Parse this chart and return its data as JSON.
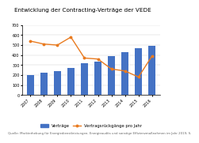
{
  "title": "Entwicklung der Contracting-Verträge der VEDE",
  "years": [
    "2007",
    "2008",
    "2009",
    "2010",
    "2011",
    "2012",
    "2013",
    "2014",
    "2015",
    "2016"
  ],
  "bar_values": [
    200,
    220,
    240,
    270,
    320,
    330,
    390,
    430,
    470,
    490
  ],
  "line_values": [
    540,
    510,
    500,
    580,
    370,
    360,
    260,
    240,
    180,
    390
  ],
  "bar_color": "#4472C4",
  "line_color": "#E97B20",
  "bar_label": "Verträge",
  "line_label": "Vertragsrückgänge pro Jahr",
  "bg_color": "#FFFFFF",
  "source_text": "Quelle: Markterhebung für Energiedienstleistungen, Energieaudits und sonstige Effizienzmaßnahmen im Jahr 2019, S.",
  "ylim": [
    0,
    700
  ],
  "title_fontsize": 5.2,
  "legend_fontsize": 3.8,
  "source_fontsize": 2.8,
  "tick_fontsize": 3.5
}
